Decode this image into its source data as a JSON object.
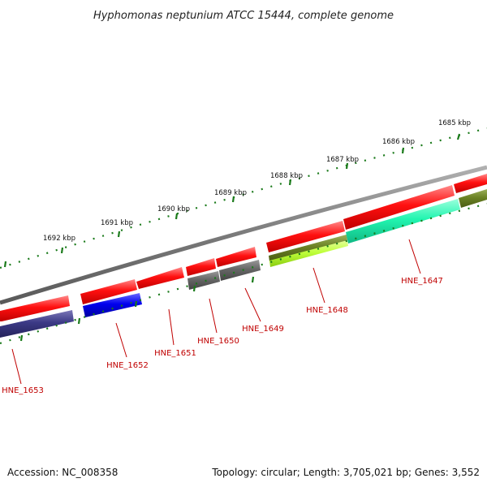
{
  "title": "Hyphomonas neptunium ATCC 15444, complete genome",
  "footer": {
    "accession": "Accession: NC_008358",
    "topology": "Topology: circular; Length: 3,705,021 bp; Genes: 3,552"
  },
  "colors": {
    "backbone": "#7f7f7f",
    "tick": "#1a7a1a",
    "label": "#c00000",
    "forward_gene": "#ff0000"
  },
  "ruler": [
    {
      "label": "1685 kbp"
    },
    {
      "label": "1686 kbp"
    },
    {
      "label": "1687 kbp"
    },
    {
      "label": "1688 kbp"
    },
    {
      "label": "1689 kbp"
    },
    {
      "label": "1690 kbp"
    },
    {
      "label": "1691 kbp"
    },
    {
      "label": "1692 kbp"
    }
  ],
  "gene_labels": [
    {
      "name": "HNE_1647"
    },
    {
      "name": "HNE_1648"
    },
    {
      "name": "HNE_1649"
    },
    {
      "name": "HNE_1650"
    },
    {
      "name": "HNE_1651"
    },
    {
      "name": "HNE_1652"
    },
    {
      "name": "HNE_1653"
    }
  ]
}
